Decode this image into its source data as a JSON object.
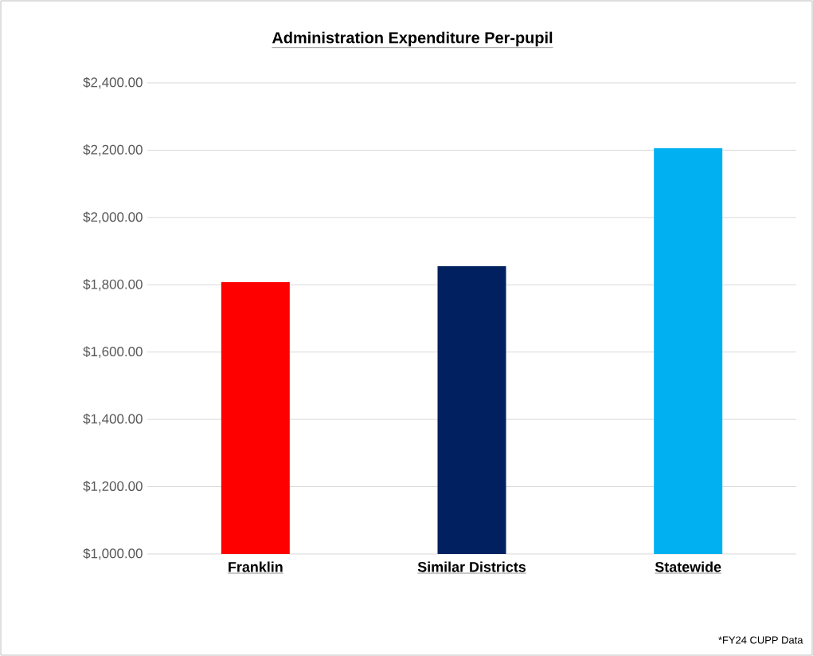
{
  "chart_data": {
    "type": "bar",
    "title": "Administration Expenditure Per-pupil",
    "categories": [
      "Franklin",
      "Similar Districts",
      "Statewide"
    ],
    "values": [
      1808,
      1855,
      2206
    ],
    "colors": [
      "#ff0000",
      "#002060",
      "#00b0f0"
    ],
    "ylim": [
      1000,
      2400
    ],
    "yticks": [
      {
        "value": 1000,
        "label": "$1,000.00"
      },
      {
        "value": 1200,
        "label": "$1,200.00"
      },
      {
        "value": 1400,
        "label": "$1,400.00"
      },
      {
        "value": 1600,
        "label": "$1,600.00"
      },
      {
        "value": 1800,
        "label": "$1,800.00"
      },
      {
        "value": 2000,
        "label": "$2,000.00"
      },
      {
        "value": 2200,
        "label": "$2,200.00"
      },
      {
        "value": 2400,
        "label": "$2,400.00"
      }
    ],
    "grid": "y",
    "annotations": [
      "*FY24 CUPP Data"
    ]
  }
}
